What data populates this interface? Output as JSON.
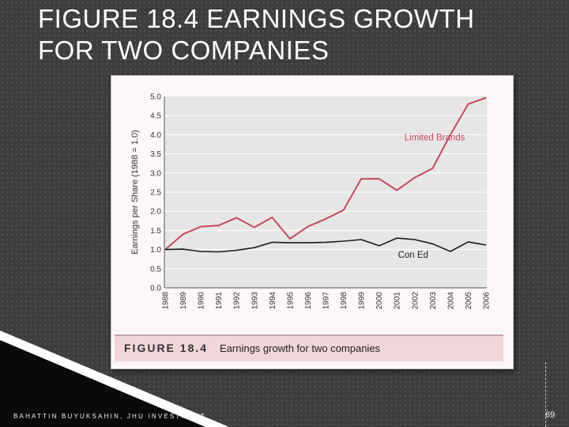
{
  "slide": {
    "title_line1": "FIGURE 18.4 EARNINGS GROWTH",
    "title_line2": "FOR TWO COMPANIES",
    "footer": "BAHATTIN BUYUKSAHIN, JHU INVESTMENT",
    "page_number": "69"
  },
  "caption": {
    "label": "FIGURE 18.4",
    "text": "Earnings growth for two companies"
  },
  "colors": {
    "limited_brands": "#c9485c",
    "con_ed": "#1a1a1a",
    "plot_bg": "#e6e6e6",
    "grid": "#ffffff"
  },
  "chart_data": {
    "type": "line",
    "title": "",
    "xlabel": "",
    "ylabel": "Earnings per Share (1988 = 1.0)",
    "ylim": [
      0,
      5
    ],
    "yticks": [
      "0.0",
      "0.5",
      "1.0",
      "1.5",
      "2.0",
      "2.5",
      "3.0",
      "3.5",
      "4.0",
      "4.5",
      "5.0"
    ],
    "grid": true,
    "x": [
      "1988",
      "1989",
      "1990",
      "1991",
      "1992",
      "1993",
      "1994",
      "1995",
      "1996",
      "1997",
      "1998",
      "1999",
      "2000",
      "2001",
      "2002",
      "2003",
      "2004",
      "2005",
      "2006"
    ],
    "series": [
      {
        "name": "Limited Brands",
        "values": [
          1.0,
          1.4,
          1.6,
          1.63,
          1.83,
          1.58,
          1.84,
          1.28,
          1.6,
          1.8,
          2.03,
          2.85,
          2.85,
          2.55,
          2.88,
          3.12,
          4.0,
          4.8,
          4.97
        ]
      },
      {
        "name": "Con Ed",
        "values": [
          1.0,
          1.01,
          0.95,
          0.94,
          0.98,
          1.05,
          1.19,
          1.18,
          1.18,
          1.19,
          1.22,
          1.26,
          1.1,
          1.3,
          1.26,
          1.15,
          0.95,
          1.2,
          1.12
        ]
      }
    ]
  }
}
